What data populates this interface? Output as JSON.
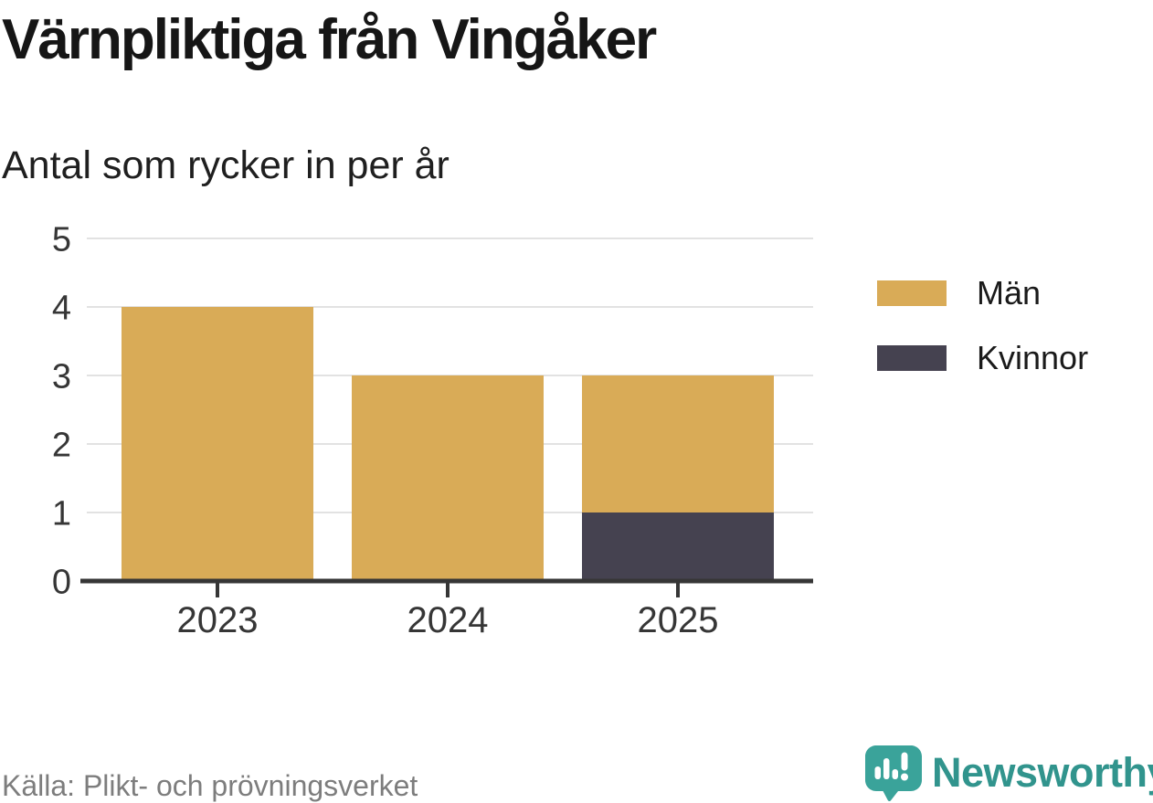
{
  "header": {
    "title": "Värnpliktiga från Vingåker",
    "subtitle": "Antal som rycker in per år"
  },
  "chart_data": {
    "type": "bar",
    "stacked": true,
    "categories": [
      "2023",
      "2024",
      "2025"
    ],
    "series": [
      {
        "name": "Män",
        "color": "#d9ab57",
        "values": [
          4,
          3,
          2
        ]
      },
      {
        "name": "Kvinnor",
        "color": "#454250",
        "values": [
          0,
          0,
          1
        ]
      }
    ],
    "stack_order_bottom_to_top": [
      "Kvinnor",
      "Män"
    ],
    "totals": [
      4,
      3,
      3
    ],
    "title": "Värnpliktiga från Vingåker",
    "subtitle": "Antal som rycker in per år",
    "xlabel": "",
    "ylabel": "",
    "ylim": [
      0,
      5
    ],
    "yticks": [
      0,
      1,
      2,
      3,
      4,
      5
    ],
    "grid": "horizontal",
    "legend_position": "right"
  },
  "footer": {
    "source": "Källa: Plikt- och prövningsverket",
    "brand": "Newsworthy"
  },
  "colors": {
    "men_series": "#d9ab57",
    "women_series": "#454250",
    "gridline": "#e2e2e2",
    "axis": "#363636",
    "source_text": "#7d7d7d",
    "brand_teal": "#31948d"
  }
}
